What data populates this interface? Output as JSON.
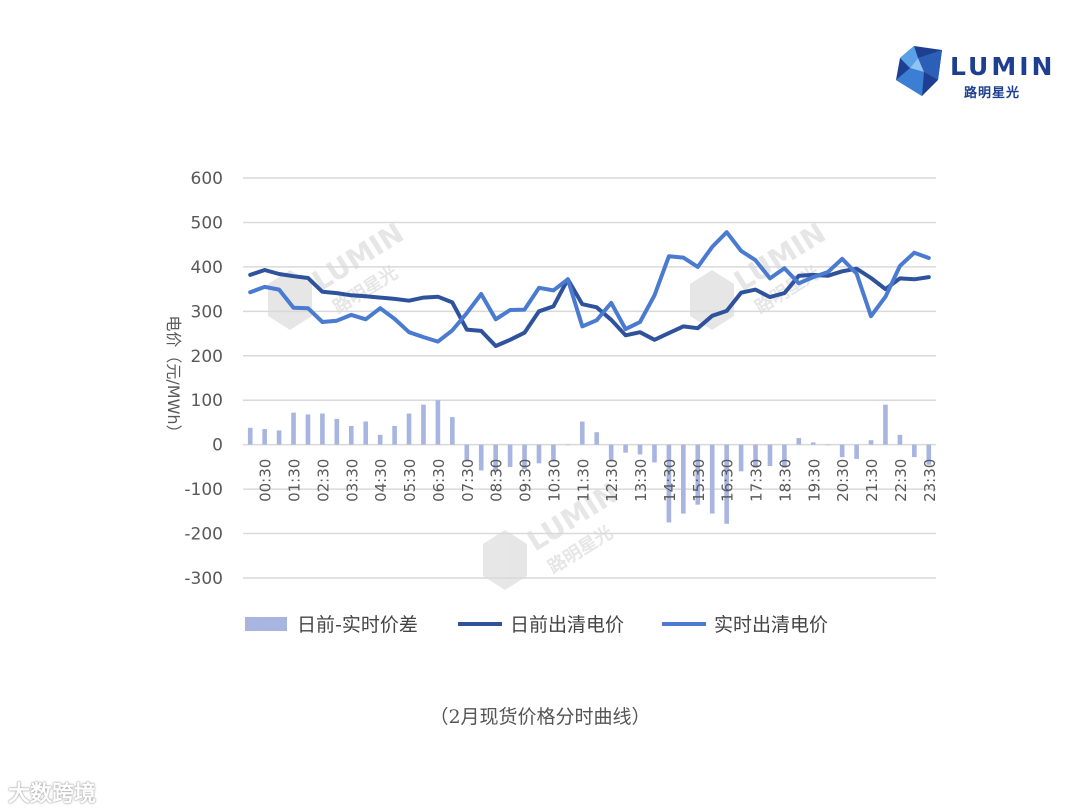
{
  "brand": {
    "name": "LUMIN",
    "subtitle": "路明星光"
  },
  "caption": "（2月现货价格分时曲线）",
  "corner_watermark": "大数跨境",
  "colors": {
    "bar": "#a7b5e0",
    "day_ahead": "#2f529c",
    "realtime": "#4a7bd0",
    "grid": "#d9d9d9",
    "axis_text": "#595959"
  },
  "chart_data": {
    "type": "line",
    "title": "",
    "xlabel": "",
    "ylabel": "电价（元/MWh）",
    "ylim": [
      -300,
      600
    ],
    "yticks": [
      600,
      500,
      400,
      300,
      200,
      100,
      0,
      -100,
      -200,
      -300
    ],
    "grid": true,
    "legend_position": "bottom",
    "x": [
      "00:00",
      "00:30",
      "01:00",
      "01:30",
      "02:00",
      "02:30",
      "03:00",
      "03:30",
      "04:00",
      "04:30",
      "05:00",
      "05:30",
      "06:00",
      "06:30",
      "07:00",
      "07:30",
      "08:00",
      "08:30",
      "09:00",
      "09:30",
      "10:00",
      "10:30",
      "11:00",
      "11:30",
      "12:00",
      "12:30",
      "13:00",
      "13:30",
      "14:00",
      "14:30",
      "15:00",
      "15:30",
      "16:00",
      "16:30",
      "17:00",
      "17:30",
      "18:00",
      "18:30",
      "19:00",
      "19:30",
      "20:00",
      "20:30",
      "21:00",
      "21:30",
      "22:00",
      "22:30",
      "23:00",
      "23:30"
    ],
    "tick_labels": [
      "00:30",
      "01:30",
      "02:30",
      "03:30",
      "04:30",
      "05:30",
      "06:30",
      "07:30",
      "08:30",
      "09:30",
      "10:30",
      "11:30",
      "12:30",
      "13:30",
      "14:30",
      "15:30",
      "16:30",
      "17:30",
      "18:30",
      "19:30",
      "20:30",
      "21:30",
      "22:30",
      "23:30"
    ],
    "series": [
      {
        "name": "日前-实时价差",
        "kind": "bar",
        "values": [
          38,
          35,
          32,
          72,
          68,
          70,
          58,
          42,
          52,
          22,
          42,
          70,
          90,
          100,
          62,
          -38,
          -58,
          -60,
          -50,
          -55,
          -42,
          -38,
          0,
          52,
          28,
          -38,
          -18,
          -22,
          -40,
          -175,
          -155,
          -135,
          -155,
          -178,
          -60,
          -52,
          -48,
          -52,
          15,
          5,
          0,
          -28,
          -32,
          10,
          90,
          22,
          -28,
          -45
        ]
      },
      {
        "name": "日前出清电价",
        "kind": "line",
        "values": [
          382,
          393,
          384,
          379,
          375,
          344,
          341,
          336,
          334,
          331,
          328,
          324,
          331,
          333,
          320,
          259,
          256,
          222,
          236,
          252,
          300,
          311,
          372,
          316,
          309,
          281,
          246,
          253,
          236,
          251,
          266,
          262,
          290,
          301,
          342,
          349,
          332,
          341,
          380,
          382,
          380,
          390,
          396,
          375,
          350,
          374,
          372,
          377
        ]
      },
      {
        "name": "实时出清电价",
        "kind": "line",
        "values": [
          343,
          355,
          349,
          308,
          307,
          276,
          279,
          292,
          282,
          307,
          283,
          253,
          242,
          232,
          257,
          296,
          339,
          282,
          303,
          304,
          353,
          347,
          372,
          266,
          280,
          319,
          260,
          276,
          336,
          424,
          421,
          400,
          445,
          478,
          436,
          415,
          374,
          397,
          363,
          377,
          388,
          418,
          385,
          289,
          333,
          402,
          432,
          420
        ]
      }
    ]
  }
}
